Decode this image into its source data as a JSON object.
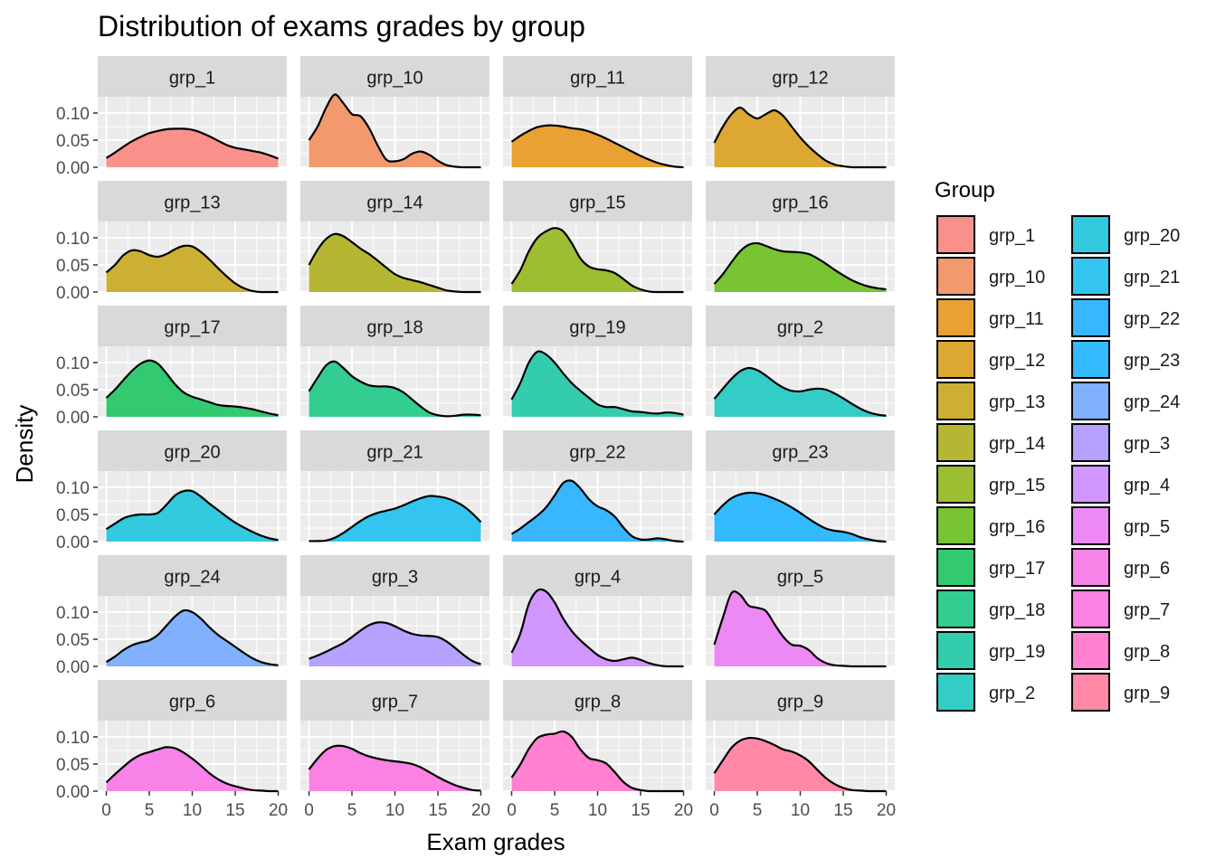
{
  "colors": {
    "panel_bg": "#EBEBEB",
    "strip_bg": "#D9D9D9",
    "grid": "#FFFFFF",
    "text": "#1A1A1A",
    "tick_text": "#4D4D4D",
    "outline": "#000000"
  },
  "chart_data": {
    "type": "area",
    "title": "Distribution of exams grades by group",
    "xlabel": "Exam grades",
    "ylabel": "Density",
    "xlim": [
      0,
      20
    ],
    "ylim": [
      0,
      0.13
    ],
    "x_ticks": [
      0,
      5,
      10,
      15,
      20
    ],
    "x_tick_labels": [
      "0",
      "5",
      "10",
      "15",
      "20"
    ],
    "y_ticks": [
      0,
      0.05,
      0.1
    ],
    "y_tick_labels": [
      "0.00",
      "0.05",
      "0.10"
    ],
    "grid": true,
    "facet_grid": {
      "rows": 6,
      "cols": 4
    },
    "legend": {
      "title": "Group",
      "position": "right",
      "columns": 2
    },
    "x": [
      0,
      1,
      2,
      3,
      4,
      5,
      6,
      7,
      8,
      9,
      10,
      11,
      12,
      13,
      14,
      15,
      16,
      17,
      18,
      19,
      20
    ],
    "series": [
      {
        "name": "grp_1",
        "color": "#F8766D",
        "values": [
          0.017,
          0.027,
          0.038,
          0.048,
          0.056,
          0.063,
          0.067,
          0.07,
          0.071,
          0.071,
          0.069,
          0.064,
          0.057,
          0.049,
          0.041,
          0.036,
          0.033,
          0.03,
          0.027,
          0.022,
          0.016
        ]
      },
      {
        "name": "grp_10",
        "color": "#EF7F49",
        "values": [
          0.05,
          0.075,
          0.11,
          0.134,
          0.118,
          0.098,
          0.094,
          0.072,
          0.04,
          0.014,
          0.011,
          0.015,
          0.025,
          0.029,
          0.023,
          0.012,
          0.004,
          0.001,
          0.0,
          0.0,
          0.0
        ]
      },
      {
        "name": "grp_11",
        "color": "#E38900",
        "values": [
          0.047,
          0.058,
          0.067,
          0.074,
          0.077,
          0.077,
          0.075,
          0.072,
          0.07,
          0.066,
          0.06,
          0.053,
          0.045,
          0.037,
          0.029,
          0.021,
          0.014,
          0.008,
          0.004,
          0.001,
          0.0
        ]
      },
      {
        "name": "grp_12",
        "color": "#D39200",
        "values": [
          0.045,
          0.075,
          0.098,
          0.11,
          0.098,
          0.09,
          0.098,
          0.105,
          0.095,
          0.075,
          0.055,
          0.038,
          0.024,
          0.012,
          0.005,
          0.002,
          0.0,
          0.0,
          0.0,
          0.0,
          0.0
        ]
      },
      {
        "name": "grp_13",
        "color": "#BF9C00",
        "values": [
          0.036,
          0.05,
          0.068,
          0.077,
          0.075,
          0.068,
          0.065,
          0.07,
          0.079,
          0.085,
          0.084,
          0.074,
          0.06,
          0.044,
          0.029,
          0.016,
          0.007,
          0.002,
          0.0,
          0.0,
          0.0
        ]
      },
      {
        "name": "grp_14",
        "color": "#A3A500",
        "values": [
          0.05,
          0.078,
          0.098,
          0.107,
          0.103,
          0.092,
          0.08,
          0.07,
          0.058,
          0.045,
          0.033,
          0.026,
          0.022,
          0.018,
          0.013,
          0.008,
          0.003,
          0.001,
          0.0,
          0.0,
          0.0
        ]
      },
      {
        "name": "grp_15",
        "color": "#85AD00",
        "values": [
          0.015,
          0.04,
          0.075,
          0.1,
          0.112,
          0.118,
          0.112,
          0.09,
          0.062,
          0.047,
          0.042,
          0.04,
          0.035,
          0.024,
          0.012,
          0.005,
          0.001,
          0.0,
          0.0,
          0.0,
          0.0
        ]
      },
      {
        "name": "grp_16",
        "color": "#56B500",
        "values": [
          0.015,
          0.033,
          0.055,
          0.075,
          0.087,
          0.09,
          0.085,
          0.079,
          0.075,
          0.074,
          0.073,
          0.07,
          0.062,
          0.052,
          0.041,
          0.031,
          0.022,
          0.015,
          0.01,
          0.007,
          0.005
        ]
      },
      {
        "name": "grp_17",
        "color": "#00BB4E",
        "values": [
          0.035,
          0.05,
          0.068,
          0.085,
          0.098,
          0.104,
          0.098,
          0.08,
          0.06,
          0.045,
          0.037,
          0.032,
          0.027,
          0.022,
          0.02,
          0.019,
          0.017,
          0.014,
          0.01,
          0.006,
          0.003
        ]
      },
      {
        "name": "grp_18",
        "color": "#00BF76",
        "values": [
          0.047,
          0.072,
          0.095,
          0.102,
          0.09,
          0.075,
          0.065,
          0.058,
          0.056,
          0.056,
          0.053,
          0.045,
          0.032,
          0.019,
          0.008,
          0.003,
          0.001,
          0.002,
          0.004,
          0.004,
          0.003
        ]
      },
      {
        "name": "grp_19",
        "color": "#00C19A",
        "values": [
          0.032,
          0.062,
          0.1,
          0.12,
          0.115,
          0.1,
          0.08,
          0.062,
          0.048,
          0.035,
          0.023,
          0.018,
          0.018,
          0.014,
          0.01,
          0.009,
          0.007,
          0.006,
          0.008,
          0.007,
          0.004
        ]
      },
      {
        "name": "grp_2",
        "color": "#00C0B8",
        "values": [
          0.033,
          0.052,
          0.07,
          0.084,
          0.09,
          0.086,
          0.076,
          0.064,
          0.054,
          0.048,
          0.047,
          0.05,
          0.052,
          0.05,
          0.043,
          0.034,
          0.024,
          0.015,
          0.008,
          0.004,
          0.002
        ]
      },
      {
        "name": "grp_20",
        "color": "#00BCD6",
        "values": [
          0.023,
          0.033,
          0.043,
          0.048,
          0.05,
          0.05,
          0.053,
          0.068,
          0.085,
          0.093,
          0.093,
          0.083,
          0.07,
          0.058,
          0.046,
          0.035,
          0.026,
          0.018,
          0.011,
          0.006,
          0.003
        ]
      },
      {
        "name": "grp_21",
        "color": "#00B6EB",
        "values": [
          0.001,
          0.001,
          0.002,
          0.007,
          0.016,
          0.027,
          0.038,
          0.047,
          0.053,
          0.057,
          0.061,
          0.067,
          0.074,
          0.08,
          0.084,
          0.083,
          0.08,
          0.074,
          0.065,
          0.052,
          0.036
        ]
      },
      {
        "name": "grp_22",
        "color": "#06A4FF",
        "values": [
          0.014,
          0.024,
          0.036,
          0.048,
          0.063,
          0.085,
          0.108,
          0.112,
          0.098,
          0.078,
          0.065,
          0.058,
          0.046,
          0.026,
          0.01,
          0.004,
          0.004,
          0.006,
          0.004,
          0.001,
          0.0
        ]
      },
      {
        "name": "grp_23",
        "color": "#00A9FF",
        "values": [
          0.05,
          0.067,
          0.08,
          0.087,
          0.09,
          0.089,
          0.085,
          0.079,
          0.072,
          0.063,
          0.053,
          0.042,
          0.032,
          0.024,
          0.02,
          0.018,
          0.014,
          0.008,
          0.004,
          0.001,
          0.0
        ]
      },
      {
        "name": "grp_24",
        "color": "#619CFF",
        "values": [
          0.008,
          0.018,
          0.03,
          0.039,
          0.044,
          0.048,
          0.058,
          0.075,
          0.092,
          0.103,
          0.1,
          0.088,
          0.072,
          0.058,
          0.047,
          0.036,
          0.025,
          0.015,
          0.008,
          0.004,
          0.002
        ]
      },
      {
        "name": "grp_3",
        "color": "#A58AFF",
        "values": [
          0.014,
          0.02,
          0.027,
          0.035,
          0.043,
          0.054,
          0.066,
          0.076,
          0.081,
          0.08,
          0.074,
          0.066,
          0.06,
          0.057,
          0.056,
          0.054,
          0.046,
          0.034,
          0.021,
          0.01,
          0.004
        ]
      },
      {
        "name": "grp_4",
        "color": "#C77CFF",
        "values": [
          0.025,
          0.06,
          0.115,
          0.14,
          0.138,
          0.118,
          0.088,
          0.065,
          0.048,
          0.034,
          0.021,
          0.013,
          0.01,
          0.013,
          0.016,
          0.012,
          0.006,
          0.002,
          0.0,
          0.0,
          0.0
        ]
      },
      {
        "name": "grp_5",
        "color": "#E76BF3",
        "values": [
          0.04,
          0.09,
          0.135,
          0.132,
          0.112,
          0.108,
          0.102,
          0.078,
          0.055,
          0.04,
          0.038,
          0.03,
          0.015,
          0.006,
          0.002,
          0.001,
          0.0,
          0.0,
          0.0,
          0.0,
          0.0
        ]
      },
      {
        "name": "grp_6",
        "color": "#F564E3",
        "values": [
          0.016,
          0.031,
          0.045,
          0.058,
          0.067,
          0.072,
          0.077,
          0.081,
          0.079,
          0.071,
          0.06,
          0.047,
          0.033,
          0.022,
          0.014,
          0.009,
          0.005,
          0.002,
          0.001,
          0.0,
          0.0
        ]
      },
      {
        "name": "grp_7",
        "color": "#FA62DB",
        "values": [
          0.04,
          0.06,
          0.076,
          0.083,
          0.083,
          0.078,
          0.07,
          0.064,
          0.06,
          0.057,
          0.055,
          0.053,
          0.05,
          0.044,
          0.035,
          0.026,
          0.018,
          0.011,
          0.006,
          0.002,
          0.001
        ]
      },
      {
        "name": "grp_8",
        "color": "#FF61C3",
        "values": [
          0.025,
          0.049,
          0.078,
          0.098,
          0.104,
          0.106,
          0.11,
          0.1,
          0.077,
          0.061,
          0.057,
          0.051,
          0.035,
          0.017,
          0.006,
          0.002,
          0.0,
          0.0,
          0.0,
          0.0,
          0.0
        ]
      },
      {
        "name": "grp_9",
        "color": "#FF6C91",
        "values": [
          0.033,
          0.057,
          0.08,
          0.093,
          0.098,
          0.097,
          0.092,
          0.085,
          0.077,
          0.073,
          0.066,
          0.055,
          0.039,
          0.024,
          0.013,
          0.006,
          0.002,
          0.001,
          0.0,
          0.0,
          0.0
        ]
      }
    ]
  }
}
